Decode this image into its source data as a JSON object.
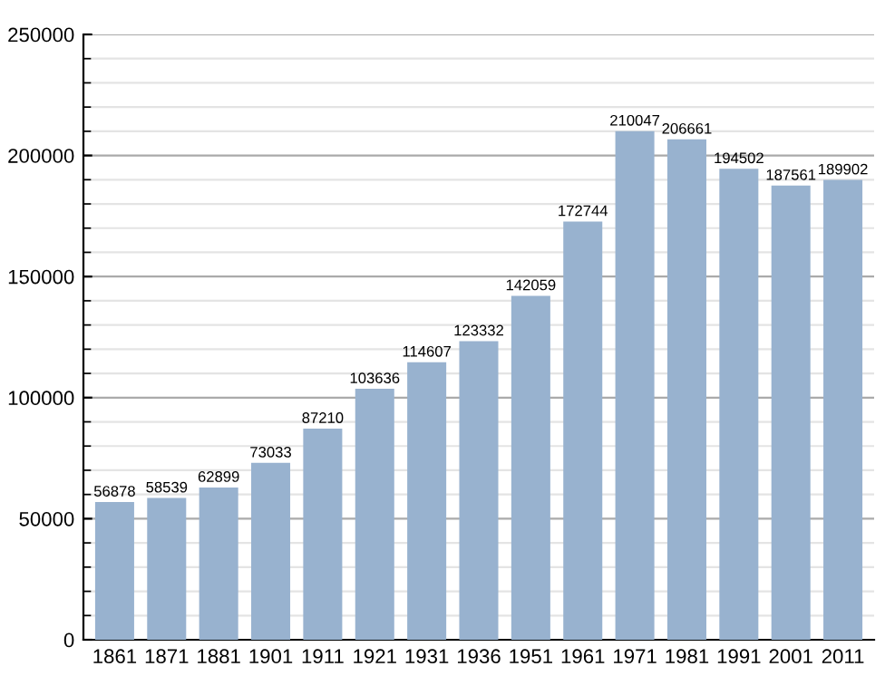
{
  "chart_data": {
    "type": "bar",
    "categories": [
      "1861",
      "1871",
      "1881",
      "1901",
      "1911",
      "1921",
      "1931",
      "1936",
      "1951",
      "1961",
      "1971",
      "1981",
      "1991",
      "2001",
      "2011"
    ],
    "values": [
      56878,
      58539,
      62899,
      73033,
      87210,
      103636,
      114607,
      123332,
      142059,
      172744,
      210047,
      206661,
      194502,
      187561,
      189902
    ],
    "color": "#98b2cf",
    "ylim": [
      0,
      250000
    ],
    "yticks": [
      0,
      50000,
      100000,
      150000,
      200000,
      250000
    ],
    "grid": "y",
    "data_labels": true
  }
}
